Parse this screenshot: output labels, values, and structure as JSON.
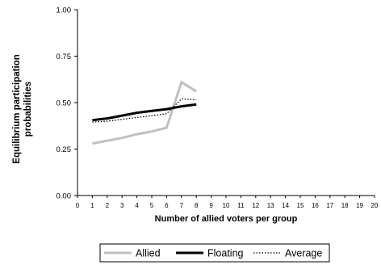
{
  "chart_data": {
    "type": "line",
    "title": "",
    "xlabel": "Number of allied voters per group",
    "ylabel": "Equilibrium participation probabilities",
    "ylabel_lines": [
      "Equilibrium participation",
      "probabilities"
    ],
    "xlim": [
      0,
      20
    ],
    "ylim": [
      0,
      1
    ],
    "x_ticks": [
      "0",
      "1",
      "2",
      "3",
      "4",
      "5",
      "6",
      "7",
      "8",
      "9",
      "10",
      "11",
      "12",
      "13",
      "14",
      "15",
      "16",
      "17",
      "18",
      "19",
      "20"
    ],
    "y_ticks": [
      "0.00",
      "0.25",
      "0.50",
      "0.75",
      "1.00"
    ],
    "grid": false,
    "legend_position": "bottom",
    "series": [
      {
        "name": "Allied",
        "color": "#c0c0c0",
        "style": "solid",
        "x": [
          1,
          2,
          3,
          4,
          5,
          6,
          7,
          8
        ],
        "y": [
          0.28,
          0.295,
          0.31,
          0.33,
          0.345,
          0.365,
          0.61,
          0.56
        ]
      },
      {
        "name": "Floating",
        "color": "#000000",
        "style": "solid",
        "x": [
          1,
          2,
          3,
          4,
          5,
          6,
          7,
          8
        ],
        "y": [
          0.405,
          0.415,
          0.43,
          0.445,
          0.455,
          0.465,
          0.48,
          0.49
        ]
      },
      {
        "name": "Average",
        "color": "#000000",
        "style": "dotted",
        "x": [
          1,
          2,
          3,
          4,
          5,
          6,
          7,
          8
        ],
        "y": [
          0.395,
          0.4,
          0.41,
          0.42,
          0.43,
          0.44,
          0.52,
          0.515
        ]
      }
    ]
  }
}
